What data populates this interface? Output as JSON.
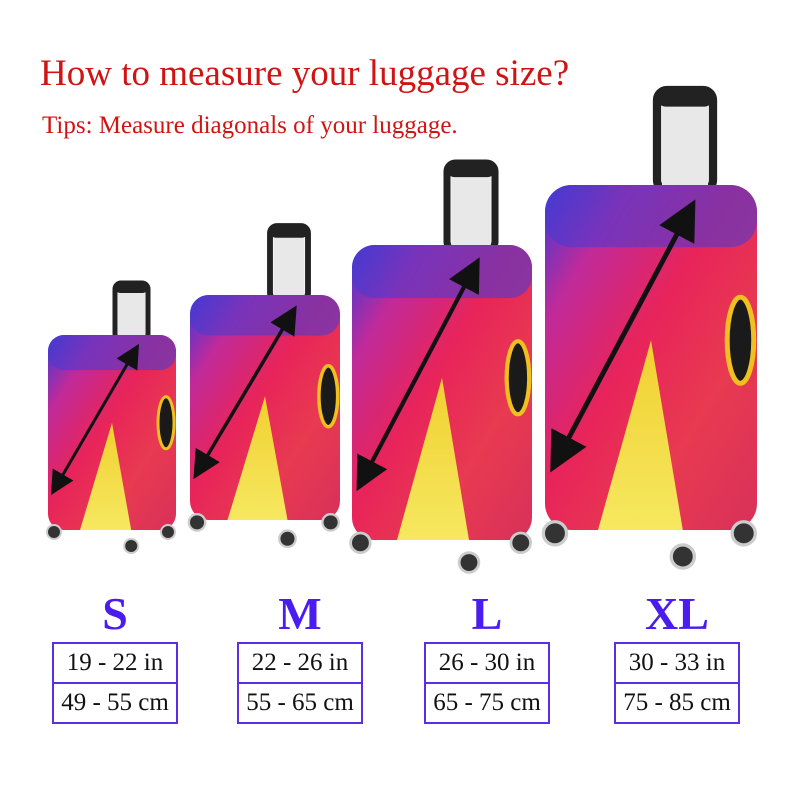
{
  "title": "How to measure your luggage size?",
  "subtitle": "Tips: Measure diagonals of your luggage.",
  "colors": {
    "title": "#d01414",
    "size_label": "#4a1cf0",
    "border": "#5a2ee6"
  },
  "sizes": [
    {
      "label": "S",
      "inches": "19 - 22 in",
      "cm": "49 - 55 cm"
    },
    {
      "label": "M",
      "inches": "22 - 26 in",
      "cm": "55 - 65 cm"
    },
    {
      "label": "L",
      "inches": "26 - 30 in",
      "cm": "65 - 75 cm"
    },
    {
      "label": "XL",
      "inches": "30 - 33 in",
      "cm": "75 - 85 cm"
    }
  ]
}
